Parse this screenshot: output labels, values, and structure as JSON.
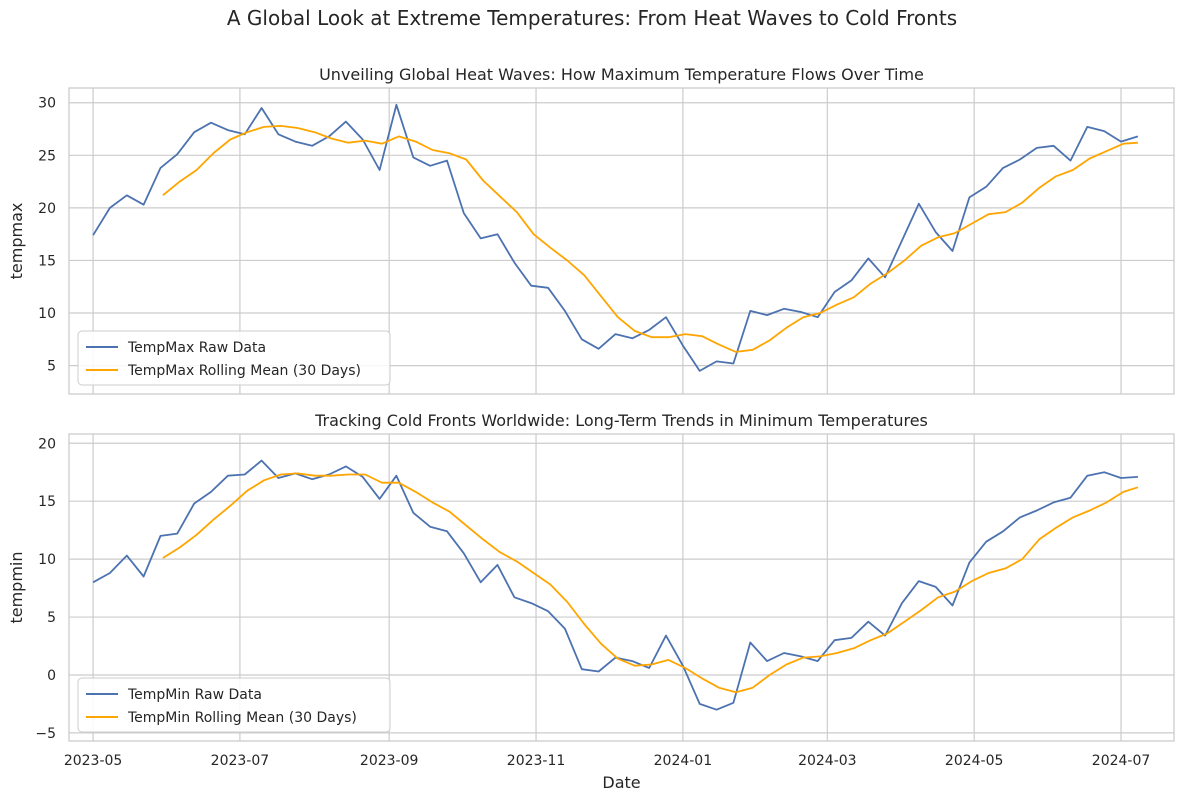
{
  "figure_title": "A Global Look at Extreme Temperatures: From Heat Waves to Cold Fronts",
  "x_axis_label": "Date",
  "x_tick_labels": [
    "2023-05",
    "2023-07",
    "2023-09",
    "2023-11",
    "2024-01",
    "2024-03",
    "2024-05",
    "2024-07"
  ],
  "colors": {
    "raw": "#4c72b0",
    "rolling": "#ffa500",
    "grid": "#cccccc",
    "axes_edge": "#cccccc"
  },
  "chart_data": [
    {
      "type": "line",
      "title": "Unveiling Global Heat Waves: How Maximum Temperature Flows Over Time",
      "ylabel": "tempmax",
      "xlabel": "",
      "xlim": [
        "2023-04-21",
        "2024-07-23"
      ],
      "ylim": [
        2.3,
        31.4
      ],
      "yticks": [
        5,
        10,
        15,
        20,
        25,
        30
      ],
      "grid": true,
      "legend_position": "lower left",
      "series": [
        {
          "name": "TempMax Raw Data",
          "color": "#4c72b0",
          "x": [
            "2023-05-01",
            "2023-05-08",
            "2023-05-15",
            "2023-05-22",
            "2023-05-29",
            "2023-06-05",
            "2023-06-12",
            "2023-06-19",
            "2023-06-26",
            "2023-07-03",
            "2023-07-10",
            "2023-07-17",
            "2023-07-24",
            "2023-07-31",
            "2023-08-07",
            "2023-08-14",
            "2023-08-21",
            "2023-08-28",
            "2023-09-04",
            "2023-09-11",
            "2023-09-18",
            "2023-09-25",
            "2023-10-02",
            "2023-10-09",
            "2023-10-16",
            "2023-10-23",
            "2023-10-30",
            "2023-11-06",
            "2023-11-13",
            "2023-11-20",
            "2023-11-27",
            "2023-12-04",
            "2023-12-11",
            "2023-12-18",
            "2023-12-25",
            "2024-01-01",
            "2024-01-08",
            "2024-01-15",
            "2024-01-22",
            "2024-01-29",
            "2024-02-05",
            "2024-02-12",
            "2024-02-19",
            "2024-02-26",
            "2024-03-04",
            "2024-03-11",
            "2024-03-18",
            "2024-03-25",
            "2024-04-01",
            "2024-04-08",
            "2024-04-15",
            "2024-04-22",
            "2024-04-29",
            "2024-05-06",
            "2024-05-13",
            "2024-05-20",
            "2024-05-27",
            "2024-06-03",
            "2024-06-10",
            "2024-06-17",
            "2024-06-24",
            "2024-07-01",
            "2024-07-08"
          ],
          "values": [
            17.4,
            20.0,
            21.2,
            20.3,
            23.8,
            25.1,
            27.2,
            28.1,
            27.4,
            27.0,
            29.5,
            27.0,
            26.3,
            25.9,
            26.8,
            28.2,
            26.5,
            23.6,
            29.8,
            24.8,
            24.0,
            24.5,
            19.5,
            17.1,
            17.5,
            14.8,
            12.6,
            12.4,
            10.2,
            7.5,
            6.6,
            8.0,
            7.6,
            8.4,
            9.6,
            6.9,
            4.5,
            5.4,
            5.2,
            10.2,
            9.8,
            10.4,
            10.1,
            9.6,
            12.0,
            13.1,
            15.2,
            13.4,
            16.9,
            20.4,
            17.7,
            15.9,
            21.0,
            22.0,
            23.8,
            24.6,
            25.7,
            25.9,
            24.5,
            27.7,
            27.3,
            26.3,
            26.8
          ]
        },
        {
          "name": "TempMax Rolling Mean (30 Days)",
          "color": "#ffa500",
          "x": [
            "2023-05-30",
            "2023-06-06",
            "2023-06-13",
            "2023-06-20",
            "2023-06-27",
            "2023-07-04",
            "2023-07-11",
            "2023-07-18",
            "2023-07-25",
            "2023-08-01",
            "2023-08-08",
            "2023-08-15",
            "2023-08-22",
            "2023-08-29",
            "2023-09-05",
            "2023-09-12",
            "2023-09-19",
            "2023-09-26",
            "2023-10-03",
            "2023-10-10",
            "2023-10-17",
            "2023-10-24",
            "2023-10-31",
            "2023-11-07",
            "2023-11-14",
            "2023-11-21",
            "2023-11-28",
            "2023-12-05",
            "2023-12-12",
            "2023-12-19",
            "2023-12-26",
            "2024-01-02",
            "2024-01-09",
            "2024-01-16",
            "2024-01-23",
            "2024-01-30",
            "2024-02-06",
            "2024-02-13",
            "2024-02-20",
            "2024-02-27",
            "2024-03-05",
            "2024-03-12",
            "2024-03-19",
            "2024-03-26",
            "2024-04-02",
            "2024-04-09",
            "2024-04-16",
            "2024-04-23",
            "2024-04-30",
            "2024-05-07",
            "2024-05-14",
            "2024-05-21",
            "2024-05-28",
            "2024-06-04",
            "2024-06-11",
            "2024-06-18",
            "2024-06-25",
            "2024-07-02",
            "2024-07-08"
          ],
          "values": [
            21.2,
            22.5,
            23.6,
            25.2,
            26.5,
            27.2,
            27.7,
            27.8,
            27.6,
            27.2,
            26.6,
            26.2,
            26.4,
            26.1,
            26.8,
            26.3,
            25.5,
            25.2,
            24.6,
            22.6,
            21.1,
            19.6,
            17.5,
            16.2,
            15.0,
            13.6,
            11.6,
            9.6,
            8.3,
            7.7,
            7.7,
            8.0,
            7.8,
            7.0,
            6.3,
            6.5,
            7.4,
            8.6,
            9.6,
            10.0,
            10.8,
            11.5,
            12.8,
            13.8,
            15.0,
            16.4,
            17.2,
            17.6,
            18.5,
            19.4,
            19.6,
            20.5,
            21.9,
            23.0,
            23.6,
            24.7,
            25.4,
            26.1,
            26.2
          ]
        }
      ]
    },
    {
      "type": "line",
      "title": "Tracking Cold Fronts Worldwide: Long-Term Trends in Minimum Temperatures",
      "ylabel": "tempmin",
      "xlabel": "Date",
      "xlim": [
        "2023-04-21",
        "2024-07-23"
      ],
      "ylim": [
        -5.7,
        20.8
      ],
      "yticks": [
        -5,
        0,
        5,
        10,
        15,
        20
      ],
      "grid": true,
      "legend_position": "lower left",
      "series": [
        {
          "name": "TempMin Raw Data",
          "color": "#4c72b0",
          "x": [
            "2023-05-01",
            "2023-05-08",
            "2023-05-15",
            "2023-05-22",
            "2023-05-29",
            "2023-06-05",
            "2023-06-12",
            "2023-06-19",
            "2023-06-26",
            "2023-07-03",
            "2023-07-10",
            "2023-07-17",
            "2023-07-24",
            "2023-07-31",
            "2023-08-07",
            "2023-08-14",
            "2023-08-21",
            "2023-08-28",
            "2023-09-04",
            "2023-09-11",
            "2023-09-18",
            "2023-09-25",
            "2023-10-02",
            "2023-10-09",
            "2023-10-16",
            "2023-10-23",
            "2023-10-30",
            "2023-11-06",
            "2023-11-13",
            "2023-11-20",
            "2023-11-27",
            "2023-12-04",
            "2023-12-11",
            "2023-12-18",
            "2023-12-25",
            "2024-01-01",
            "2024-01-08",
            "2024-01-15",
            "2024-01-22",
            "2024-01-29",
            "2024-02-05",
            "2024-02-12",
            "2024-02-19",
            "2024-02-26",
            "2024-03-04",
            "2024-03-11",
            "2024-03-18",
            "2024-03-25",
            "2024-04-01",
            "2024-04-08",
            "2024-04-15",
            "2024-04-22",
            "2024-04-29",
            "2024-05-06",
            "2024-05-13",
            "2024-05-20",
            "2024-05-27",
            "2024-06-03",
            "2024-06-10",
            "2024-06-17",
            "2024-06-24",
            "2024-07-01",
            "2024-07-08"
          ],
          "values": [
            8.0,
            8.8,
            10.3,
            8.5,
            12.0,
            12.2,
            14.8,
            15.8,
            17.2,
            17.3,
            18.5,
            17.0,
            17.4,
            16.9,
            17.3,
            18.0,
            17.1,
            15.2,
            17.2,
            14.0,
            12.8,
            12.4,
            10.5,
            8.0,
            9.5,
            6.7,
            6.2,
            5.5,
            4.0,
            0.5,
            0.3,
            1.5,
            1.2,
            0.6,
            3.4,
            0.8,
            -2.5,
            -3.0,
            -2.4,
            2.8,
            1.2,
            1.9,
            1.6,
            1.2,
            3.0,
            3.2,
            4.6,
            3.4,
            6.2,
            8.1,
            7.6,
            6.0,
            9.7,
            11.5,
            12.4,
            13.6,
            14.2,
            14.9,
            15.3,
            17.2,
            17.5,
            17.0,
            17.1
          ]
        },
        {
          "name": "TempMin Rolling Mean (30 Days)",
          "color": "#ffa500",
          "x": [
            "2023-05-30",
            "2023-06-06",
            "2023-06-13",
            "2023-06-20",
            "2023-06-27",
            "2023-07-04",
            "2023-07-11",
            "2023-07-18",
            "2023-07-25",
            "2023-08-01",
            "2023-08-08",
            "2023-08-15",
            "2023-08-22",
            "2023-08-29",
            "2023-09-05",
            "2023-09-12",
            "2023-09-19",
            "2023-09-26",
            "2023-10-03",
            "2023-10-10",
            "2023-10-17",
            "2023-10-24",
            "2023-10-31",
            "2023-11-07",
            "2023-11-14",
            "2023-11-21",
            "2023-11-28",
            "2023-12-05",
            "2023-12-12",
            "2023-12-19",
            "2023-12-26",
            "2024-01-02",
            "2024-01-09",
            "2024-01-16",
            "2024-01-23",
            "2024-01-30",
            "2024-02-06",
            "2024-02-13",
            "2024-02-20",
            "2024-02-27",
            "2024-03-05",
            "2024-03-12",
            "2024-03-19",
            "2024-03-26",
            "2024-04-02",
            "2024-04-09",
            "2024-04-16",
            "2024-04-23",
            "2024-04-30",
            "2024-05-07",
            "2024-05-14",
            "2024-05-21",
            "2024-05-28",
            "2024-06-04",
            "2024-06-11",
            "2024-06-18",
            "2024-06-25",
            "2024-07-02",
            "2024-07-08"
          ],
          "values": [
            10.1,
            11.0,
            12.1,
            13.4,
            14.6,
            15.9,
            16.8,
            17.3,
            17.4,
            17.2,
            17.2,
            17.3,
            17.3,
            16.6,
            16.6,
            15.8,
            14.9,
            14.1,
            12.9,
            11.7,
            10.6,
            9.8,
            8.8,
            7.8,
            6.3,
            4.4,
            2.7,
            1.4,
            0.8,
            0.9,
            1.3,
            0.6,
            -0.3,
            -1.1,
            -1.5,
            -1.1,
            0.0,
            0.9,
            1.5,
            1.6,
            1.9,
            2.3,
            3.0,
            3.6,
            4.6,
            5.6,
            6.7,
            7.2,
            8.1,
            8.8,
            9.2,
            10.0,
            11.7,
            12.7,
            13.6,
            14.2,
            14.9,
            15.8,
            16.2
          ]
        }
      ]
    }
  ]
}
